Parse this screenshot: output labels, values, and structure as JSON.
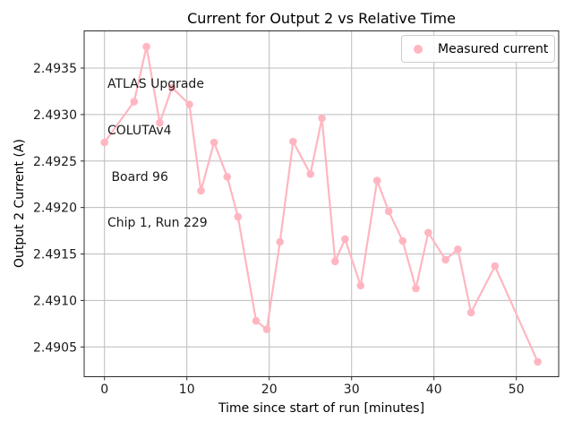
{
  "figure": {
    "kind": "matplotlib line/marker plot",
    "background": "#ffffff"
  },
  "chart_data": {
    "type": "line",
    "title": "Current for Output 2 vs Relative Time",
    "xlabel": "Time since start of run [minutes]",
    "ylabel": "Output 2 Current (A)",
    "grid": true,
    "xlim": [
      -2.47,
      55.14
    ],
    "ylim": [
      2.49018,
      2.4939
    ],
    "xticks": [
      0,
      10,
      20,
      30,
      40,
      50
    ],
    "xtick_labels": [
      "0",
      "10",
      "20",
      "30",
      "40",
      "50"
    ],
    "yticks": [
      2.4905,
      2.491,
      2.4915,
      2.492,
      2.4925,
      2.493,
      2.4935
    ],
    "ytick_labels": [
      "2.4905",
      "2.4910",
      "2.4915",
      "2.4920",
      "2.4925",
      "2.4930",
      "2.4935"
    ],
    "series": [
      {
        "name": "Measured current",
        "marker": "circle",
        "x": [
          0.0,
          3.6,
          5.1,
          6.7,
          8.2,
          10.3,
          11.7,
          13.3,
          14.9,
          16.2,
          18.4,
          19.7,
          21.3,
          22.9,
          25.0,
          26.4,
          28.0,
          29.2,
          31.1,
          33.1,
          34.5,
          36.2,
          37.8,
          39.3,
          41.4,
          42.9,
          44.5,
          47.4,
          52.6
        ],
        "y": [
          2.4927,
          2.49314,
          2.49373,
          2.49291,
          2.49329,
          2.49311,
          2.49218,
          2.4927,
          2.49233,
          2.4919,
          2.49078,
          2.49069,
          2.49163,
          2.49271,
          2.49236,
          2.49296,
          2.49142,
          2.49166,
          2.49116,
          2.49229,
          2.49196,
          2.49164,
          2.49113,
          2.49173,
          2.49144,
          2.49155,
          2.49087,
          2.49137,
          2.49034
        ]
      }
    ],
    "legend": {
      "position": "upper right",
      "entries": [
        {
          "label": "Measured current",
          "marker": "circle-icon",
          "color": "#ffb6c1"
        }
      ]
    },
    "annotation": {
      "lines": [
        "ATLAS Upgrade",
        "COLUTAv4",
        " Board 96",
        "Chip 1, Run 229"
      ]
    },
    "colors": {
      "series": "#ffb6c1",
      "grid": "#bcbcbc",
      "spine": "#2b2b2b",
      "tick_text": "#1a1a1a",
      "legend_border": "#cccccc"
    }
  }
}
